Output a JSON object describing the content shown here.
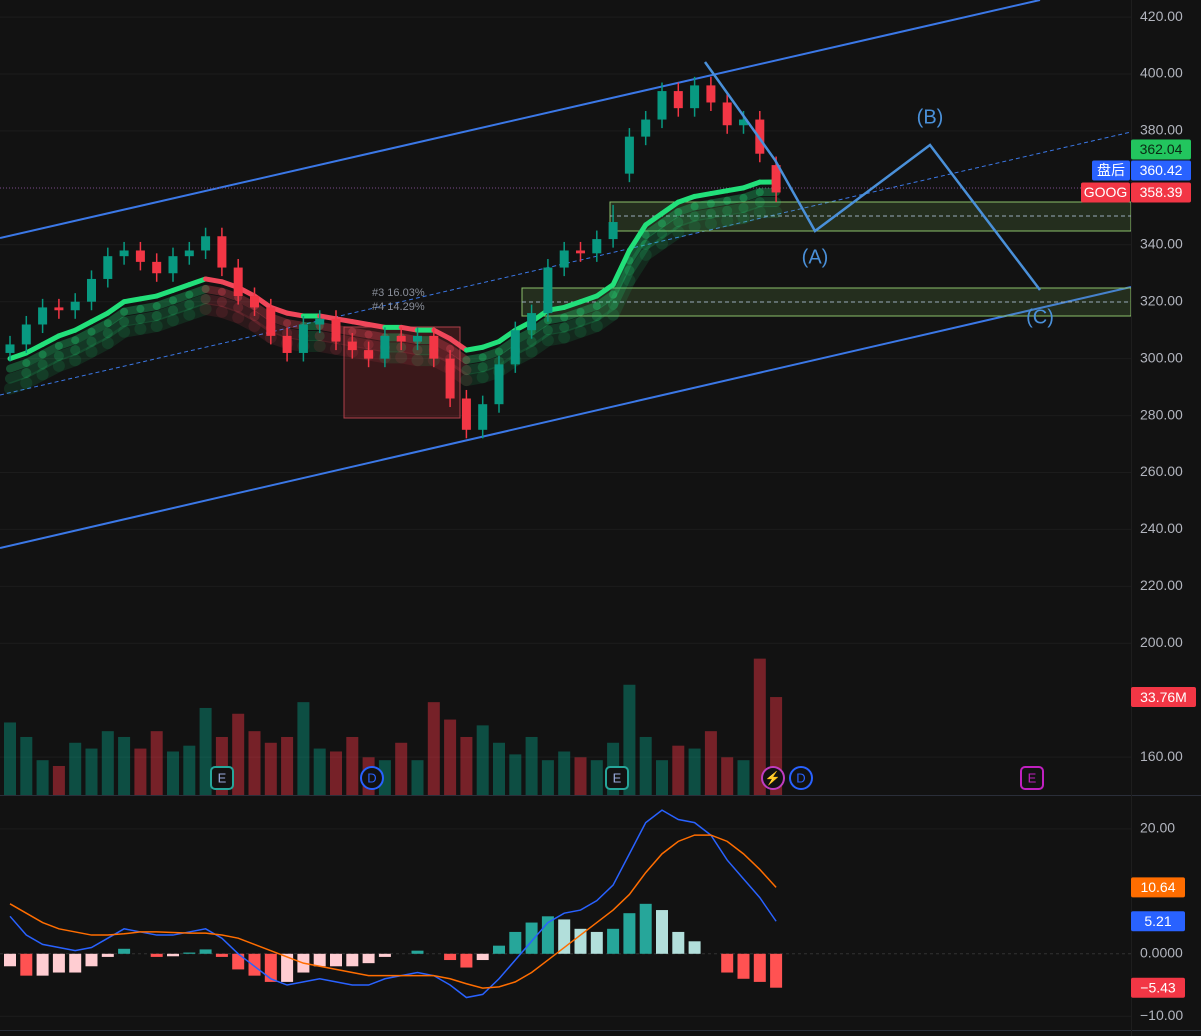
{
  "chart_data": [
    {
      "type": "candlestick",
      "symbol": "GOOG",
      "open": [
        302,
        305,
        312,
        318,
        317,
        320,
        328,
        336,
        338,
        334,
        330,
        336,
        338,
        343,
        332,
        322,
        318,
        308,
        302,
        312,
        314,
        306,
        303,
        300,
        308,
        306,
        308,
        300,
        286,
        275,
        284,
        298,
        310,
        316,
        332,
        338,
        337,
        342,
        365,
        378,
        384,
        394,
        388,
        396,
        390,
        382,
        384,
        368
      ],
      "high": [
        308,
        315,
        321,
        321,
        323,
        331,
        339,
        341,
        341,
        337,
        339,
        341,
        346,
        346,
        335,
        325,
        321,
        311,
        315,
        317,
        317,
        309,
        306,
        311,
        311,
        311,
        311,
        303,
        289,
        287,
        301,
        313,
        319,
        335,
        341,
        341,
        345,
        354,
        381,
        387,
        397,
        397,
        399,
        399,
        393,
        387,
        387,
        371
      ],
      "low": [
        299,
        302,
        309,
        314,
        314,
        317,
        325,
        333,
        331,
        327,
        327,
        333,
        335,
        329,
        319,
        315,
        305,
        299,
        299,
        309,
        303,
        300,
        297,
        297,
        303,
        303,
        297,
        283,
        272,
        272,
        281,
        295,
        307,
        313,
        329,
        334,
        334,
        339,
        362,
        375,
        381,
        385,
        385,
        387,
        379,
        379,
        369,
        355
      ],
      "close": [
        305,
        312,
        318,
        317,
        320,
        328,
        336,
        338,
        334,
        330,
        336,
        338,
        343,
        332,
        322,
        318,
        308,
        302,
        312,
        314,
        306,
        303,
        300,
        308,
        306,
        308,
        300,
        286,
        275,
        284,
        298,
        310,
        316,
        332,
        338,
        337,
        342,
        348,
        378,
        384,
        394,
        388,
        396,
        390,
        382,
        384,
        372,
        358.39
      ],
      "up_color": "#089981",
      "down_color": "#f23645",
      "ylim": [
        146.7,
        426
      ],
      "yticks": [
        {
          "value": 160,
          "label": "160.00"
        },
        {
          "value": 200,
          "label": "200.00"
        },
        {
          "value": 220,
          "label": "220.00"
        },
        {
          "value": 240,
          "label": "240.00"
        },
        {
          "value": 260,
          "label": "260.00"
        },
        {
          "value": 280,
          "label": "280.00"
        },
        {
          "value": 300,
          "label": "300.00"
        },
        {
          "value": 320,
          "label": "320.00"
        },
        {
          "value": 340,
          "label": "340.00"
        },
        {
          "value": 380,
          "label": "380.00"
        },
        {
          "value": 400,
          "label": "400.00"
        },
        {
          "value": 420,
          "label": "420.00"
        }
      ],
      "ema": {
        "values": [
          300,
          302,
          305,
          308,
          310,
          313,
          316,
          320,
          321,
          322,
          324,
          326,
          328,
          327,
          325,
          322,
          318,
          316,
          315,
          315,
          314,
          313,
          312,
          311,
          311,
          310,
          310,
          307,
          303,
          304,
          306,
          310,
          313,
          317,
          318,
          320,
          322,
          326,
          338,
          347,
          351,
          355,
          357,
          358,
          359,
          360,
          362,
          362.04
        ],
        "up_color": "#22e07a",
        "down_color": "#f0475a"
      },
      "after_hours": {
        "label": "盘后",
        "value": 360.42
      },
      "volume": {
        "values": [
          25,
          20,
          12,
          10,
          18,
          16,
          22,
          20,
          16,
          22,
          15,
          17,
          30,
          20,
          28,
          22,
          18,
          20,
          32,
          16,
          15,
          20,
          13,
          12,
          18,
          12,
          32,
          26,
          20,
          24,
          18,
          14,
          20,
          12,
          15,
          13,
          12,
          18,
          38,
          20,
          12,
          17,
          16,
          22,
          13,
          12,
          47,
          33.76
        ],
        "lim": [
          0,
          51.7
        ],
        "last_label": "33.76M"
      },
      "waves": [
        "(A)",
        "(B)",
        "(C)"
      ],
      "measures": [
        "#3 16.03%",
        "#4 14.29%"
      ],
      "events": [
        "E",
        "D",
        "E",
        "⚡",
        "D",
        "E"
      ],
      "grid": true
    },
    {
      "type": "macd",
      "macd": {
        "color": "#2962ff",
        "values": [
          6,
          3,
          1.5,
          1,
          0.5,
          1,
          2.5,
          4,
          3.5,
          3,
          3,
          3.5,
          4,
          2.5,
          0,
          -2,
          -4,
          -5,
          -4.5,
          -4,
          -4.5,
          -5,
          -5,
          -4,
          -3.5,
          -3,
          -3.5,
          -5,
          -7,
          -6.5,
          -4,
          -1,
          2,
          5,
          6.5,
          7,
          8.5,
          11,
          16,
          21,
          23,
          21.5,
          21,
          19,
          15,
          12,
          9,
          5.21
        ]
      },
      "signal": {
        "color": "#ff6d00",
        "values": [
          8,
          6.5,
          5,
          4,
          3.5,
          3,
          3,
          3.2,
          3.5,
          3.5,
          3.4,
          3.3,
          3.3,
          3,
          2.5,
          1.5,
          0.5,
          -0.5,
          -1.5,
          -2,
          -2.5,
          -3,
          -3.5,
          -3.5,
          -3.5,
          -3.5,
          -3.5,
          -4,
          -4.8,
          -5.5,
          -5.3,
          -4.5,
          -3,
          -1,
          1,
          3,
          5,
          7,
          9.5,
          13,
          16,
          18,
          19,
          19,
          18,
          16,
          13.5,
          10.64
        ]
      },
      "histogram": {
        "values": [
          -2,
          -3.5,
          -3.5,
          -3,
          -3,
          -2,
          -0.5,
          0.8,
          0,
          -0.5,
          -0.4,
          0.2,
          0.7,
          -0.5,
          -2.5,
          -3.5,
          -4.5,
          -4.5,
          -3,
          -2,
          -2,
          -2,
          -1.5,
          -0.5,
          0,
          0.5,
          0,
          -1,
          -2.2,
          -1,
          1.3,
          3.5,
          5,
          6,
          5.5,
          4,
          3.5,
          4,
          6.5,
          8,
          7,
          3.5,
          2,
          0,
          -3,
          -4,
          -4.5,
          -5.43
        ],
        "last_label": "−5.43"
      },
      "ylim": [
        -12.2,
        25.1
      ],
      "yticks": [
        {
          "value": -10,
          "label": "−10.00"
        },
        {
          "value": 0,
          "label": "0.0000"
        },
        {
          "value": 20,
          "label": "20.00"
        }
      ]
    }
  ]
}
